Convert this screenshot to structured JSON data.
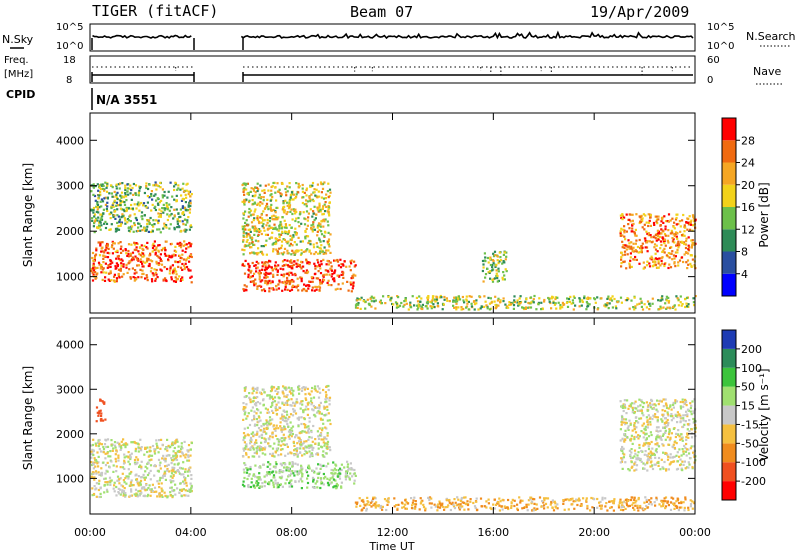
{
  "header": {
    "title": "TIGER (fitACF)",
    "beam": "Beam 07",
    "date": "19/Apr/2009"
  },
  "nsky": {
    "label": "N.Sky",
    "tick_top": "10^5",
    "tick_bottom": "10^0",
    "right_label": "N.Search",
    "right_tick_top": "10^5",
    "right_tick_bottom": "10^0"
  },
  "freq": {
    "label_line1": "Freq.",
    "label_line2": "[MHz]",
    "tick_top": "18",
    "tick_bottom": "8",
    "right_label": "Nave",
    "right_tick_top": "60",
    "right_tick_bottom": "0"
  },
  "cpid": {
    "label": "CPID",
    "value": "N/A 3551"
  },
  "axes": {
    "x_label": "Time UT",
    "y_label": "Slant Range [km]",
    "x_ticks": [
      "00:00",
      "04:00",
      "08:00",
      "12:00",
      "16:00",
      "20:00",
      "00:00"
    ],
    "y_ticks": [
      "1000",
      "2000",
      "3000",
      "4000"
    ]
  },
  "power_scale": {
    "label": "Power [dB]",
    "ticks": [
      "4",
      "8",
      "12",
      "16",
      "20",
      "24",
      "28"
    ],
    "colors": [
      "#0000ff",
      "#2a4fa0",
      "#2e8b57",
      "#6cc04a",
      "#f2d21a",
      "#f5a623",
      "#f06a10",
      "#ff0000"
    ]
  },
  "velocity_scale": {
    "label": "Velocity [m s⁻¹]",
    "ticks": [
      "200",
      "100",
      "50",
      "15",
      "-15",
      "-50",
      "-100",
      "-200"
    ],
    "colors": [
      "#1e3cb4",
      "#2c8c5a",
      "#3cc43c",
      "#a0e070",
      "#c8c8c8",
      "#f5c040",
      "#f08c1e",
      "#f05020",
      "#ff0000"
    ]
  },
  "chart_data": [
    {
      "type": "heatmap",
      "title": "Power",
      "xlabel": "Time UT",
      "ylabel": "Slant Range [km]",
      "xlim": [
        0,
        24
      ],
      "ylim": [
        200,
        4600
      ],
      "data_gap_hours": [
        4,
        6
      ],
      "scatter_regions": [
        {
          "t_start": 0.0,
          "t_end": 4.0,
          "range_low": 900,
          "range_high": 1800,
          "level_db": 26
        },
        {
          "t_start": 0.0,
          "t_end": 4.0,
          "range_low": 2000,
          "range_high": 3100,
          "level_db": 14
        },
        {
          "t_start": 6.0,
          "t_end": 10.5,
          "range_low": 700,
          "range_high": 1400,
          "level_db": 27
        },
        {
          "t_start": 6.0,
          "t_end": 9.5,
          "range_low": 1500,
          "range_high": 3100,
          "level_db": 18
        },
        {
          "t_start": 10.5,
          "t_end": 24.0,
          "range_low": 300,
          "range_high": 600,
          "level_db": 16
        },
        {
          "t_start": 15.5,
          "t_end": 16.5,
          "range_low": 900,
          "range_high": 1600,
          "level_db": 16
        },
        {
          "t_start": 21.0,
          "t_end": 24.0,
          "range_low": 1200,
          "range_high": 2400,
          "level_db": 24
        }
      ]
    },
    {
      "type": "heatmap",
      "title": "Velocity",
      "xlabel": "Time UT",
      "ylabel": "Slant Range [km]",
      "xlim": [
        0,
        24
      ],
      "ylim": [
        200,
        4600
      ],
      "data_gap_hours": [
        4,
        6
      ],
      "scatter_regions": [
        {
          "t_start": 0.0,
          "t_end": 4.0,
          "range_low": 600,
          "range_high": 1900,
          "velocity": 0
        },
        {
          "t_start": 0.2,
          "t_end": 0.6,
          "range_low": 2300,
          "range_high": 2800,
          "velocity": -150
        },
        {
          "t_start": 6.0,
          "t_end": 10.5,
          "range_low": 800,
          "range_high": 1400,
          "velocity": 30
        },
        {
          "t_start": 6.0,
          "t_end": 9.5,
          "range_low": 1500,
          "range_high": 3100,
          "velocity": 0
        },
        {
          "t_start": 10.5,
          "t_end": 24.0,
          "range_low": 300,
          "range_high": 600,
          "velocity": -40
        },
        {
          "t_start": 21.0,
          "t_end": 24.0,
          "range_low": 1200,
          "range_high": 2800,
          "velocity": 0
        }
      ]
    }
  ]
}
